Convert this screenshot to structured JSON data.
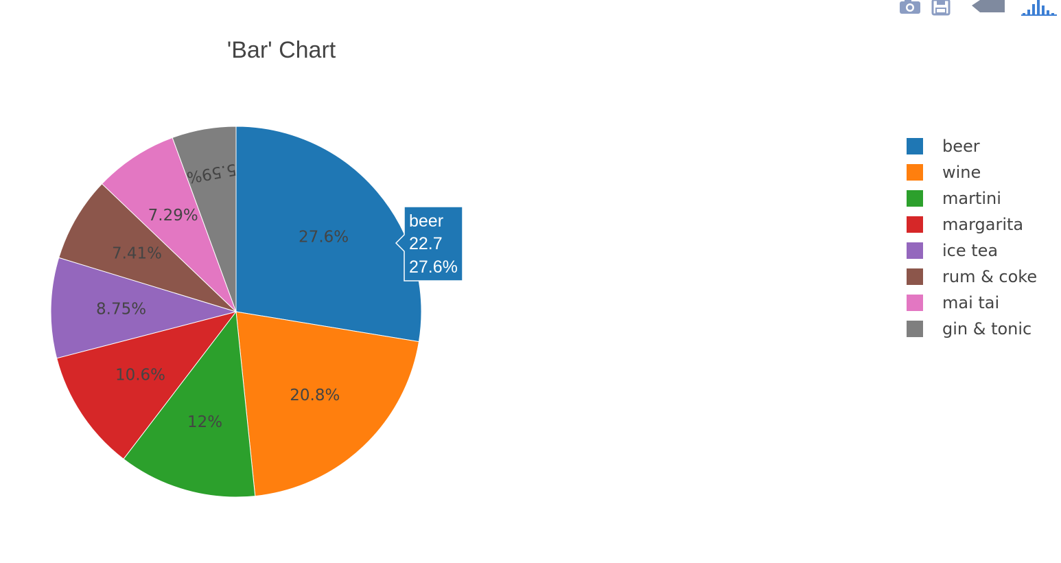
{
  "modebar": {
    "buttons": [
      {
        "name": "camera-icon",
        "title": "Download plot as a png"
      },
      {
        "name": "save-icon",
        "title": "Save and edit plot in cloud"
      },
      {
        "name": "edit-in-chart-studio-icon",
        "title": "Edit in Chart Studio"
      },
      {
        "name": "plotly-logo-icon",
        "title": "Produced with Plotly"
      }
    ],
    "icon_color": "#8b9dc3",
    "logo_color": "#3d7fd4"
  },
  "chart_data": {
    "type": "pie",
    "title": "'Bar' Chart",
    "text_info": "percent",
    "direction": "clockwise",
    "start_angle_deg": 90,
    "legend_position": "top-right",
    "labels": [
      "beer",
      "wine",
      "martini",
      "margarita",
      "ice tea",
      "rum & coke",
      "mai tai",
      "gin & tonic"
    ],
    "values": [
      22.7,
      17.1,
      9.9,
      8.7,
      7.2,
      6.1,
      6.0,
      4.6
    ],
    "percent_labels": [
      "27.6%",
      "20.8%",
      "12%",
      "10.6%",
      "8.75%",
      "7.41%",
      "7.29%",
      "5.59%"
    ],
    "colors": [
      "#1f77b4",
      "#ff7f0e",
      "#2ca02c",
      "#d62728",
      "#9467bd",
      "#8c564b",
      "#e377c2",
      "#7f7f7f"
    ],
    "hover": {
      "label": "beer",
      "value": "22.7",
      "percent": "27.6%"
    }
  }
}
